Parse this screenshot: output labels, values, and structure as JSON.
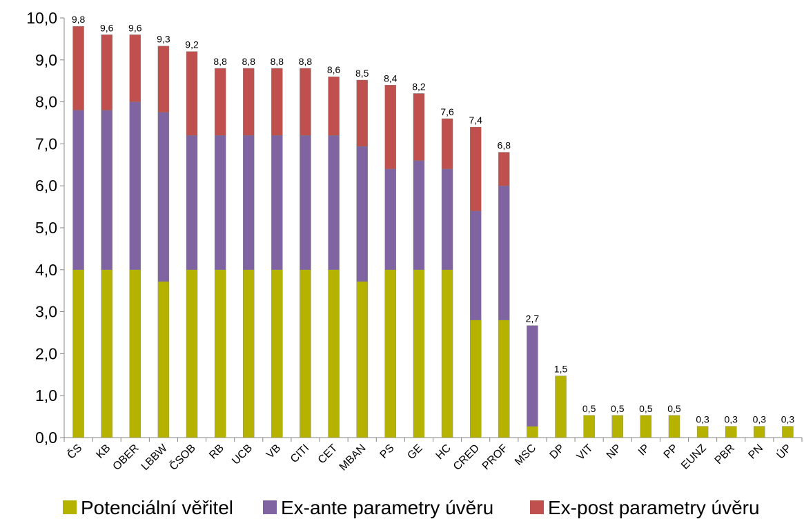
{
  "chart_data": {
    "type": "bar",
    "stacked": true,
    "categories": [
      "ČS",
      "KB",
      "OBER",
      "LBBW",
      "ČSOB",
      "RB",
      "UCB",
      "VB",
      "CITI",
      "CET",
      "MBAN",
      "PS",
      "GE",
      "HC",
      "CRED",
      "PROF",
      "MSC",
      "DP",
      "VIT",
      "NP",
      "IP",
      "PP",
      "EUNZ",
      "PBR",
      "PN",
      "ÚP"
    ],
    "series": [
      {
        "name": "Potenciální věřitel",
        "color": "#b5b300",
        "values": [
          4.0,
          4.0,
          4.0,
          3.72,
          4.0,
          4.0,
          4.0,
          4.0,
          4.0,
          4.0,
          3.72,
          4.0,
          4.0,
          4.0,
          2.8,
          2.8,
          0.27,
          1.47,
          0.53,
          0.53,
          0.53,
          0.53,
          0.27,
          0.27,
          0.27,
          0.27
        ]
      },
      {
        "name": "Ex-ante parametry úvěru",
        "color": "#8064a2",
        "values": [
          3.8,
          3.8,
          4.0,
          4.03,
          3.2,
          3.2,
          3.2,
          3.2,
          3.2,
          3.2,
          3.22,
          2.4,
          2.6,
          2.4,
          2.6,
          3.2,
          2.4,
          0,
          0,
          0,
          0,
          0,
          0,
          0,
          0,
          0
        ]
      },
      {
        "name": "Ex-post parametry úvěru",
        "color": "#c0504d",
        "values": [
          2.0,
          1.8,
          1.6,
          1.58,
          2.0,
          1.6,
          1.6,
          1.6,
          1.6,
          1.4,
          1.58,
          2.0,
          1.6,
          1.2,
          2.0,
          0.8,
          0,
          0,
          0,
          0,
          0,
          0,
          0,
          0,
          0,
          0
        ]
      }
    ],
    "totals": [
      "9,8",
      "9,6",
      "9,6",
      "9,3",
      "9,2",
      "8,8",
      "8,8",
      "8,8",
      "8,8",
      "8,6",
      "8,5",
      "8,4",
      "8,2",
      "7,6",
      "7,4",
      "6,8",
      "2,7",
      "1,5",
      "0,5",
      "0,5",
      "0,5",
      "0,5",
      "0,3",
      "0,3",
      "0,3",
      "0,3"
    ],
    "y_ticks": [
      "0,0",
      "1,0",
      "2,0",
      "3,0",
      "4,0",
      "5,0",
      "6,0",
      "7,0",
      "8,0",
      "9,0",
      "10,0"
    ],
    "ylim": [
      0,
      10
    ],
    "grid": false,
    "legend_position": "bottom"
  }
}
